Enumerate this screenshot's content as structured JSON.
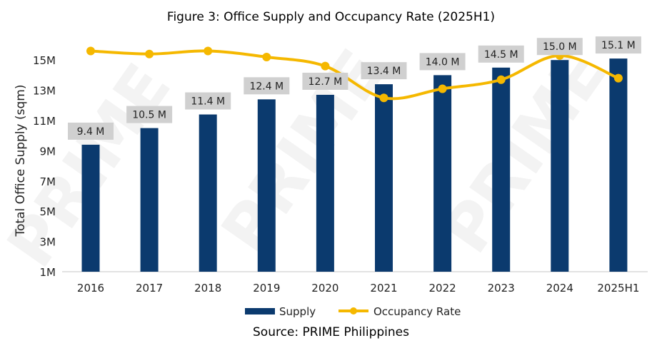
{
  "chart_data": {
    "type": "bar",
    "title": "Figure 3: Office Supply and Occupancy Rate (2025H1)",
    "source": "Source: PRIME Philippines",
    "ylabel": "Total Office Supply (sqm)",
    "xlabel": "",
    "ylim": [
      1,
      15.8
    ],
    "yticks": [
      "1M",
      "3M",
      "5M",
      "7M",
      "9M",
      "11M",
      "13M",
      "15M"
    ],
    "ytick_values": [
      1,
      3,
      5,
      7,
      9,
      11,
      13,
      15
    ],
    "categories": [
      "2016",
      "2017",
      "2018",
      "2019",
      "2020",
      "2021",
      "2022",
      "2023",
      "2024",
      "2025H1"
    ],
    "series": [
      {
        "name": "Supply",
        "type": "bar",
        "color": "#0b3a6e",
        "values": [
          9.4,
          10.5,
          11.4,
          12.4,
          12.7,
          13.4,
          14.0,
          14.5,
          15.0,
          15.1
        ],
        "labels": [
          "9.4 M",
          "10.5 M",
          "11.4 M",
          "12.4 M",
          "12.7 M",
          "13.4 M",
          "14.0 M",
          "14.5 M",
          "15.0 M",
          "15.1 M"
        ]
      },
      {
        "name": "Occupancy Rate",
        "type": "line",
        "color": "#f5b800",
        "smooth": true,
        "values_relative_position": [
          15.6,
          15.4,
          15.6,
          15.2,
          14.6,
          12.5,
          13.1,
          13.7,
          15.3,
          13.8
        ]
      }
    ],
    "legend": "bottom",
    "grid": false,
    "watermark": "PRIME Philippines"
  }
}
